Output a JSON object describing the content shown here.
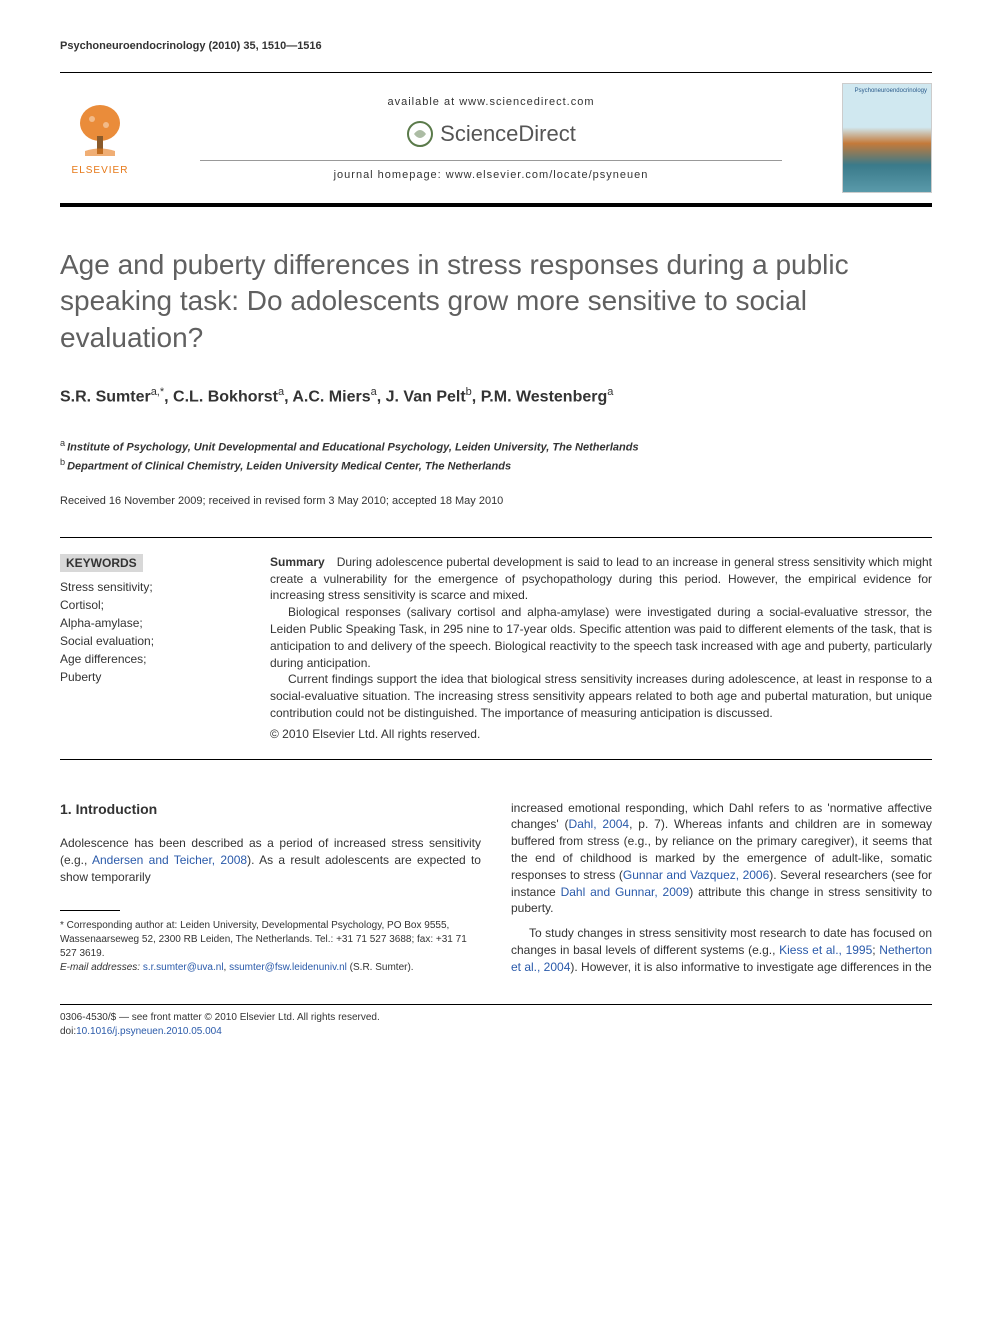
{
  "running_header": "Psychoneuroendocrinology (2010) 35, 1510—1516",
  "masthead": {
    "available_at": "available at www.sciencedirect.com",
    "sciencedirect": "ScienceDirect",
    "journal_homepage": "journal homepage: www.elsevier.com/locate/psyneuen",
    "elsevier": "ELSEVIER",
    "cover_title": "Psychoneuroendocrinology"
  },
  "title": "Age and puberty differences in stress responses during a public speaking task: Do adolescents grow more sensitive to social evaluation?",
  "authors_html": "S.R. Sumter<sup>a,*</sup>, C.L. Bokhorst<sup>a</sup>, A.C. Miers<sup>a</sup>, J. Van Pelt<sup>b</sup>, P.M. Westenberg<sup>a</sup>",
  "affiliations": [
    {
      "sup": "a",
      "text": "Institute of Psychology, Unit Developmental and Educational Psychology, Leiden University, The Netherlands"
    },
    {
      "sup": "b",
      "text": "Department of Clinical Chemistry, Leiden University Medical Center, The Netherlands"
    }
  ],
  "dates": "Received 16 November 2009; received in revised form 3 May 2010; accepted 18 May 2010",
  "keywords": {
    "title": "KEYWORDS",
    "items": [
      "Stress sensitivity;",
      "Cortisol;",
      "Alpha-amylase;",
      "Social evaluation;",
      "Age differences;",
      "Puberty"
    ]
  },
  "abstract": {
    "label": "Summary",
    "p1": "During adolescence pubertal development is said to lead to an increase in general stress sensitivity which might create a vulnerability for the emergence of psychopathology during this period. However, the empirical evidence for increasing stress sensitivity is scarce and mixed.",
    "p2": "Biological responses (salivary cortisol and alpha-amylase) were investigated during a social-evaluative stressor, the Leiden Public Speaking Task, in 295 nine to 17-year olds. Specific attention was paid to different elements of the task, that is anticipation to and delivery of the speech. Biological reactivity to the speech task increased with age and puberty, particularly during anticipation.",
    "p3": "Current findings support the idea that biological stress sensitivity increases during adolescence, at least in response to a social-evaluative situation. The increasing stress sensitivity appears related to both age and pubertal maturation, but unique contribution could not be distinguished. The importance of measuring anticipation is discussed.",
    "copyright": "© 2010 Elsevier Ltd. All rights reserved."
  },
  "body": {
    "section_number": "1.",
    "section_title": "Introduction",
    "col1_p1_pre": "Adolescence has been described as a period of increased stress sensitivity (e.g., ",
    "col1_p1_ref": "Andersen and Teicher, 2008",
    "col1_p1_post": "). As a result adolescents are expected to show temporarily",
    "col2_p1_pre": "increased emotional responding, which Dahl refers to as 'normative affective changes' (",
    "col2_p1_ref1": "Dahl, 2004",
    "col2_p1_mid1": ", p. 7). Whereas infants and children are in someway buffered from stress (e.g., by reliance on the primary caregiver), it seems that the end of childhood is marked by the emergence of adult-like, somatic responses to stress (",
    "col2_p1_ref2": "Gunnar and Vazquez, 2006",
    "col2_p1_mid2": "). Several researchers (see for instance ",
    "col2_p1_ref3": "Dahl and Gunnar, 2009",
    "col2_p1_post": ") attribute this change in stress sensitivity to puberty.",
    "col2_p2_pre": "To study changes in stress sensitivity most research to date has focused on changes in basal levels of different systems (e.g., ",
    "col2_p2_ref1": "Kiess et al., 1995",
    "col2_p2_sep": "; ",
    "col2_p2_ref2": "Netherton et al., 2004",
    "col2_p2_post": "). However, it is also informative to investigate age differences in the"
  },
  "footnote": {
    "corr_label": "* Corresponding author at:",
    "corr_text": " Leiden University, Developmental Psychology, PO Box 9555, Wassenaarseweg 52, 2300 RB Leiden, The Netherlands. Tel.: +31 71 527 3688; fax: +31 71 527 3619.",
    "email_label": "E-mail addresses:",
    "email1": "s.r.sumter@uva.nl",
    "email_sep": ", ",
    "email2": "ssumter@fsw.leidenuniv.nl",
    "email_post": " (S.R. Sumter)."
  },
  "bottom": {
    "line1": "0306-4530/$ — see front matter © 2010 Elsevier Ltd. All rights reserved.",
    "doi_label": "doi:",
    "doi": "10.1016/j.psyneuen.2010.05.004"
  },
  "colors": {
    "elsevier_orange": "#e67817",
    "link_blue": "#2a5aaa",
    "title_gray": "#606060",
    "keywords_bg": "#d8d8d8"
  }
}
